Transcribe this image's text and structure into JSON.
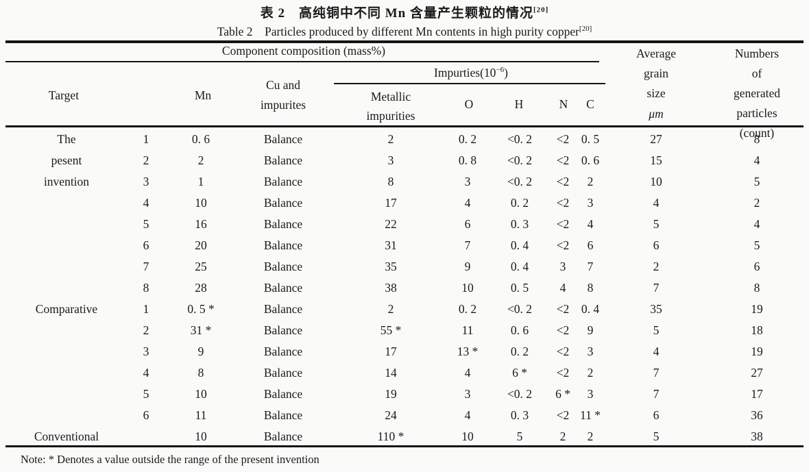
{
  "titles": {
    "zh": "表 2　高纯铜中不同 Mn 含量产生颗粒的情况",
    "zh_ref": "[20]",
    "en": "Table 2　Particles produced by different Mn contents in high purity copper",
    "en_ref": "[20]"
  },
  "note": "Note: *  Denotes a value outside the range of the present invention",
  "colors": {
    "paper": "#fafaf8",
    "ink": "#1a1a1a",
    "rule": "#141414"
  },
  "table": {
    "spanners": {
      "component_composition": "Component composition (mass%)",
      "impurities_base": "Impurties(10",
      "impurities_sup": "−6",
      "impurities_close": ")"
    },
    "headers": {
      "target": "Target",
      "mn": "Mn",
      "cu": "Cu and\nimpurites",
      "metallic": "Metallic\nimpurities",
      "o": "O",
      "h": "H",
      "n": "N",
      "c": "C",
      "grain_lines": "Average\ngrain\nsize",
      "grain_unit": "μm",
      "particles_lines": "Numbers of\ngenerated\nparticles\n(count)"
    },
    "rows": [
      {
        "target": "The",
        "no": "1",
        "mn": "0. 6",
        "cu": "Balance",
        "metallic": "2",
        "o": "0. 2",
        "h": "<0. 2",
        "n": "<2",
        "c": "0. 5",
        "grain": "27",
        "particles": "8"
      },
      {
        "target": "pesent",
        "no": "2",
        "mn": "2",
        "cu": "Balance",
        "metallic": "3",
        "o": "0. 8",
        "h": "<0. 2",
        "n": "<2",
        "c": "0. 6",
        "grain": "15",
        "particles": "4"
      },
      {
        "target": "invention",
        "no": "3",
        "mn": "1",
        "cu": "Balance",
        "metallic": "8",
        "o": "3",
        "h": "<0. 2",
        "n": "<2",
        "c": "2",
        "grain": "10",
        "particles": "5"
      },
      {
        "target": "",
        "no": "4",
        "mn": "10",
        "cu": "Balance",
        "metallic": "17",
        "o": "4",
        "h": "0. 2",
        "n": "<2",
        "c": "3",
        "grain": "4",
        "particles": "2"
      },
      {
        "target": "",
        "no": "5",
        "mn": "16",
        "cu": "Balance",
        "metallic": "22",
        "o": "6",
        "h": "0. 3",
        "n": "<2",
        "c": "4",
        "grain": "5",
        "particles": "4"
      },
      {
        "target": "",
        "no": "6",
        "mn": "20",
        "cu": "Balance",
        "metallic": "31",
        "o": "7",
        "h": "0. 4",
        "n": "<2",
        "c": "6",
        "grain": "6",
        "particles": "5"
      },
      {
        "target": "",
        "no": "7",
        "mn": "25",
        "cu": "Balance",
        "metallic": "35",
        "o": "9",
        "h": "0. 4",
        "n": "3",
        "c": "7",
        "grain": "2",
        "particles": "6"
      },
      {
        "target": "",
        "no": "8",
        "mn": "28",
        "cu": "Balance",
        "metallic": "38",
        "o": "10",
        "h": "0. 5",
        "n": "4",
        "c": "8",
        "grain": "7",
        "particles": "8"
      },
      {
        "target": "Comparative",
        "no": "1",
        "mn": "0. 5 *",
        "cu": "Balance",
        "metallic": "2",
        "o": "0. 2",
        "h": "<0. 2",
        "n": "<2",
        "c": "0. 4",
        "grain": "35",
        "particles": "19"
      },
      {
        "target": "",
        "no": "2",
        "mn": "31 *",
        "cu": "Balance",
        "metallic": "55 *",
        "o": "11",
        "h": "0. 6",
        "n": "<2",
        "c": "9",
        "grain": "5",
        "particles": "18"
      },
      {
        "target": "",
        "no": "3",
        "mn": "9",
        "cu": "Balance",
        "metallic": "17",
        "o": "13 *",
        "h": "0. 2",
        "n": "<2",
        "c": "3",
        "grain": "4",
        "particles": "19"
      },
      {
        "target": "",
        "no": "4",
        "mn": "8",
        "cu": "Balance",
        "metallic": "14",
        "o": "4",
        "h": "6 *",
        "n": "<2",
        "c": "2",
        "grain": "7",
        "particles": "27"
      },
      {
        "target": "",
        "no": "5",
        "mn": "10",
        "cu": "Balance",
        "metallic": "19",
        "o": "3",
        "h": "<0. 2",
        "n": "6 *",
        "c": "3",
        "grain": "7",
        "particles": "17"
      },
      {
        "target": "",
        "no": "6",
        "mn": "11",
        "cu": "Balance",
        "metallic": "24",
        "o": "4",
        "h": "0. 3",
        "n": "<2",
        "c": "11 *",
        "grain": "6",
        "particles": "36"
      },
      {
        "target": "Conventional",
        "no": "",
        "mn": "10",
        "cu": "Balance",
        "metallic": "110 *",
        "o": "10",
        "h": "5",
        "n": "2",
        "c": "2",
        "grain": "5",
        "particles": "38"
      }
    ]
  }
}
